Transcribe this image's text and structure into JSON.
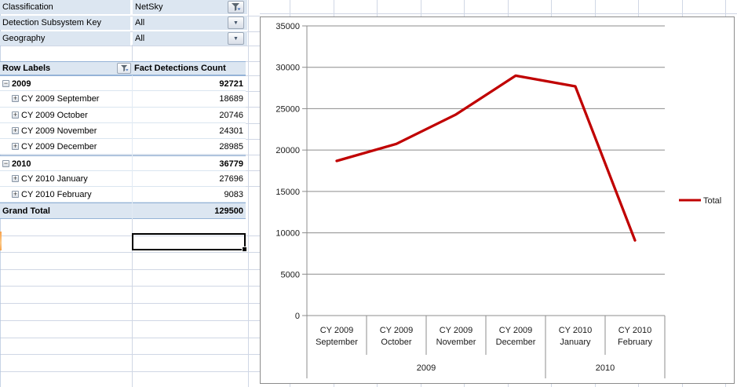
{
  "filters": [
    {
      "label": "Classification",
      "value": "NetSky",
      "button": "funnel"
    },
    {
      "label": "Detection Subsystem Key",
      "value": "All",
      "button": "dropdown"
    },
    {
      "label": "Geography",
      "value": "All",
      "button": "dropdown"
    }
  ],
  "pivot": {
    "headers": {
      "row_labels": "Row Labels",
      "values": "Fact Detections Count"
    },
    "rows": [
      {
        "label": "2009",
        "value": "92721",
        "type": "group",
        "glyph": "collapse"
      },
      {
        "label": "CY 2009 September",
        "value": "18689",
        "type": "detail",
        "glyph": "expand"
      },
      {
        "label": "CY 2009 October",
        "value": "20746",
        "type": "detail",
        "glyph": "expand"
      },
      {
        "label": "CY 2009 November",
        "value": "24301",
        "type": "detail",
        "glyph": "expand"
      },
      {
        "label": "CY 2009 December",
        "value": "28985",
        "type": "detail",
        "glyph": "expand"
      },
      {
        "label": "2010",
        "value": "36779",
        "type": "group",
        "glyph": "collapse"
      },
      {
        "label": "CY 2010 January",
        "value": "27696",
        "type": "detail",
        "glyph": "expand"
      },
      {
        "label": "CY 2010 February",
        "value": "9083",
        "type": "detail",
        "glyph": "expand"
      }
    ],
    "grand_total": {
      "label": "Grand Total",
      "value": "129500"
    }
  },
  "chart_data": {
    "type": "line",
    "title": "",
    "categories": [
      "CY 2009 September",
      "CY 2009 October",
      "CY 2009 November",
      "CY 2009 December",
      "CY 2010 January",
      "CY 2010 February"
    ],
    "category_groups": [
      {
        "label": "2009",
        "span": 4
      },
      {
        "label": "2010",
        "span": 2
      }
    ],
    "series": [
      {
        "name": "Total",
        "values": [
          18689,
          20746,
          24301,
          28985,
          27696,
          9083
        ],
        "color": "#C00000"
      }
    ],
    "xlabel": "",
    "ylabel": "",
    "ylim": [
      0,
      35000
    ],
    "ytick_step": 5000,
    "grid": "horizontal",
    "legend_position": "right"
  },
  "colors": {
    "pivot_fill": "#DCE6F1",
    "pivot_border": "#95B3D7",
    "row_divider": "#DAE5F0",
    "worksheet_gridline": "#D0D7E5",
    "chart_border": "#8C8C8C",
    "chart_gridline": "#8C8C8C",
    "series_red": "#C00000",
    "selection_orange": "#F7A24B"
  }
}
